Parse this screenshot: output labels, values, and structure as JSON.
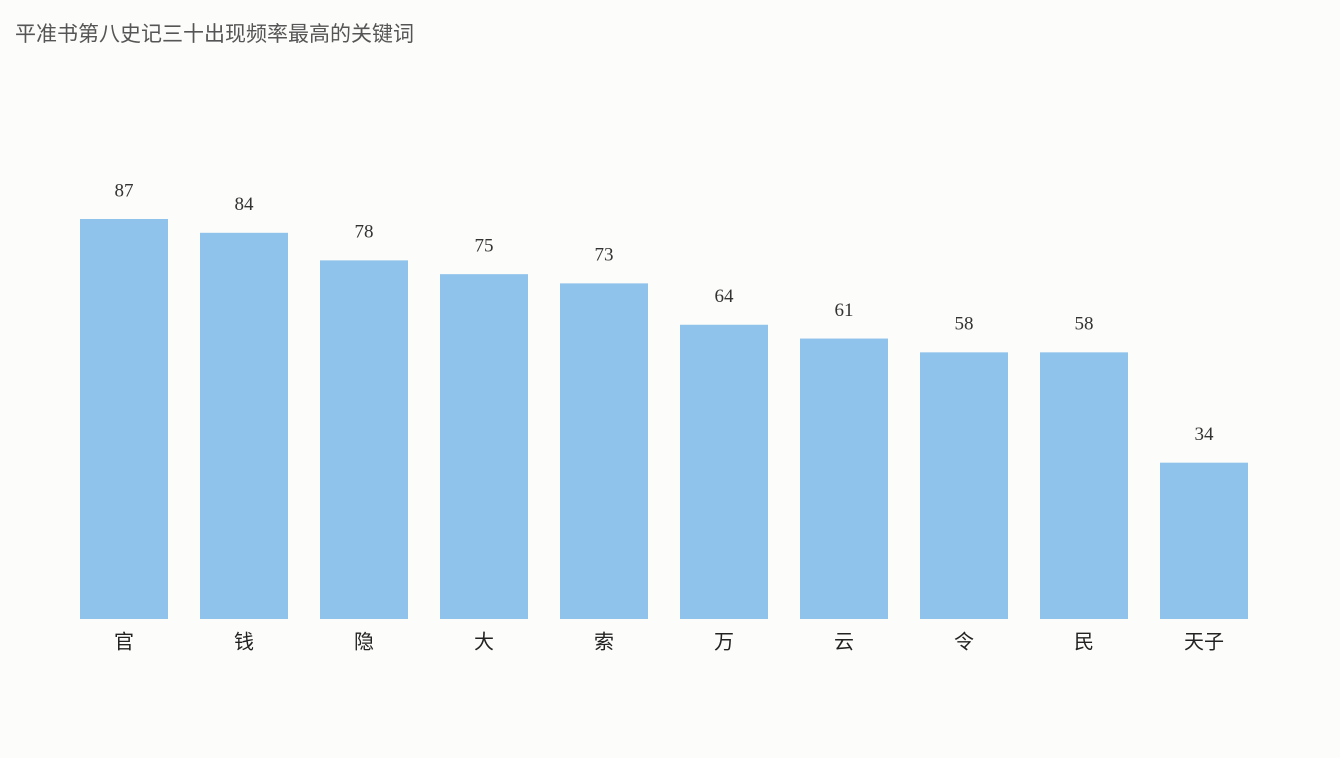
{
  "chart_data": {
    "type": "bar",
    "title": "平准书第八史记三十出现频率最高的关键词",
    "categories": [
      "官",
      "钱",
      "隐",
      "大",
      "索",
      "万",
      "云",
      "令",
      "民",
      "天子"
    ],
    "values": [
      87,
      84,
      78,
      75,
      73,
      64,
      61,
      58,
      58,
      34
    ],
    "color": "#8fc3eb"
  }
}
